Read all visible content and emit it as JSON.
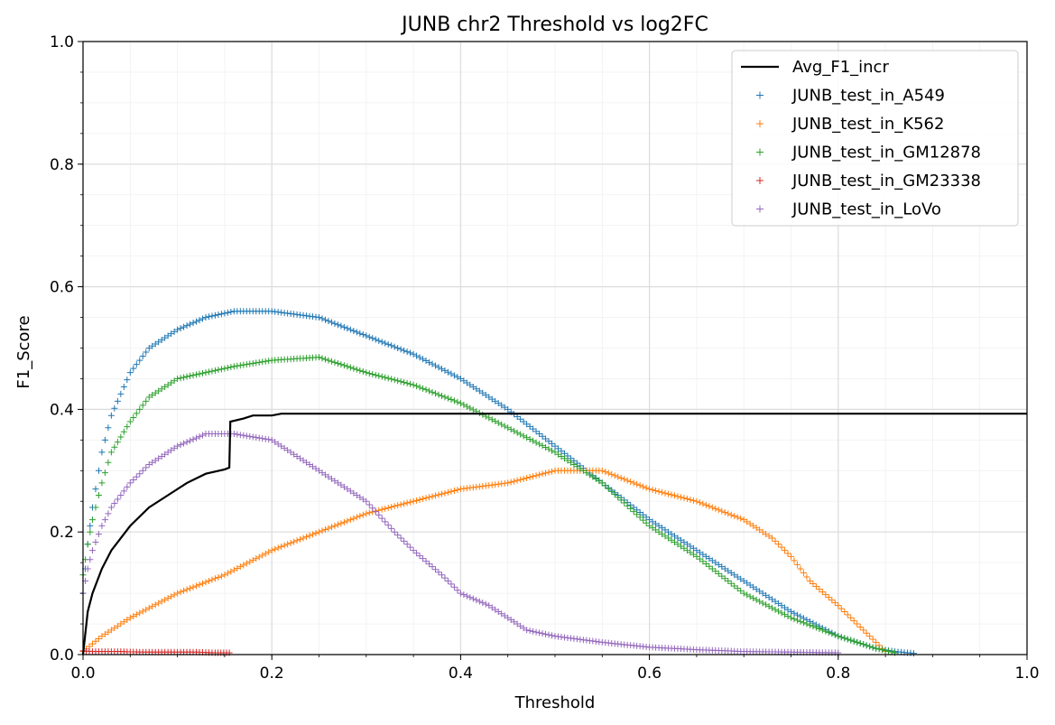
{
  "chart_data": {
    "type": "scatter",
    "title": "JUNB chr2 Threshold vs log2FC",
    "xlabel": "Threshold",
    "ylabel": "F1_Score",
    "xlim": [
      0.0,
      1.0
    ],
    "ylim": [
      0.0,
      1.0
    ],
    "xticks": [
      "0.0",
      "0.2",
      "0.4",
      "0.6",
      "0.8",
      "1.0"
    ],
    "yticks": [
      "0.0",
      "0.2",
      "0.4",
      "0.6",
      "0.8",
      "1.0"
    ],
    "grid": true,
    "minor_grid": true,
    "legend_position": "top-right",
    "line": {
      "name": "Avg_F1_incr",
      "color": "#000000",
      "x": [
        0.0,
        0.005,
        0.01,
        0.02,
        0.03,
        0.05,
        0.07,
        0.09,
        0.11,
        0.13,
        0.15,
        0.155,
        0.156,
        0.17,
        0.18,
        0.2,
        0.21,
        1.0
      ],
      "y": [
        0.0,
        0.07,
        0.1,
        0.14,
        0.17,
        0.21,
        0.24,
        0.26,
        0.28,
        0.295,
        0.302,
        0.305,
        0.38,
        0.385,
        0.39,
        0.39,
        0.393,
        0.393
      ]
    },
    "series": [
      {
        "name": "JUNB_test_in_A549",
        "color": "#1f77b4",
        "x": [
          0.0,
          0.005,
          0.01,
          0.02,
          0.03,
          0.05,
          0.07,
          0.1,
          0.13,
          0.16,
          0.2,
          0.25,
          0.3,
          0.35,
          0.4,
          0.45,
          0.5,
          0.55,
          0.6,
          0.65,
          0.7,
          0.75,
          0.8,
          0.84,
          0.86,
          0.88
        ],
        "y": [
          0.1,
          0.18,
          0.24,
          0.33,
          0.39,
          0.46,
          0.5,
          0.53,
          0.55,
          0.56,
          0.56,
          0.55,
          0.52,
          0.49,
          0.45,
          0.4,
          0.34,
          0.28,
          0.22,
          0.17,
          0.12,
          0.07,
          0.03,
          0.01,
          0.005,
          0.002
        ]
      },
      {
        "name": "JUNB_test_in_K562",
        "color": "#ff7f0e",
        "x": [
          0.0,
          0.02,
          0.05,
          0.1,
          0.15,
          0.2,
          0.25,
          0.3,
          0.35,
          0.4,
          0.45,
          0.5,
          0.55,
          0.6,
          0.65,
          0.7,
          0.73,
          0.75,
          0.77,
          0.8,
          0.82,
          0.84,
          0.85
        ],
        "y": [
          0.005,
          0.03,
          0.06,
          0.1,
          0.13,
          0.17,
          0.2,
          0.23,
          0.25,
          0.27,
          0.28,
          0.3,
          0.3,
          0.27,
          0.25,
          0.22,
          0.19,
          0.16,
          0.12,
          0.08,
          0.05,
          0.02,
          0.005
        ]
      },
      {
        "name": "JUNB_test_in_GM12878",
        "color": "#2ca02c",
        "x": [
          0.0,
          0.005,
          0.01,
          0.02,
          0.03,
          0.05,
          0.07,
          0.1,
          0.13,
          0.16,
          0.2,
          0.25,
          0.3,
          0.35,
          0.4,
          0.45,
          0.5,
          0.55,
          0.6,
          0.65,
          0.7,
          0.75,
          0.8,
          0.84,
          0.86
        ],
        "y": [
          0.13,
          0.18,
          0.22,
          0.28,
          0.33,
          0.38,
          0.42,
          0.45,
          0.46,
          0.47,
          0.48,
          0.485,
          0.46,
          0.44,
          0.41,
          0.37,
          0.33,
          0.28,
          0.21,
          0.16,
          0.1,
          0.06,
          0.03,
          0.01,
          0.003
        ]
      },
      {
        "name": "JUNB_test_in_GM23338",
        "color": "#d62728",
        "x": [
          0.0,
          0.01,
          0.02,
          0.04,
          0.06,
          0.08,
          0.1,
          0.12,
          0.14,
          0.155
        ],
        "y": [
          0.006,
          0.005,
          0.005,
          0.005,
          0.004,
          0.004,
          0.004,
          0.004,
          0.003,
          0.003
        ]
      },
      {
        "name": "JUNB_test_in_LoVo",
        "color": "#9467bd",
        "x": [
          0.0,
          0.005,
          0.01,
          0.02,
          0.03,
          0.05,
          0.07,
          0.1,
          0.13,
          0.16,
          0.18,
          0.2,
          0.22,
          0.25,
          0.28,
          0.3,
          0.33,
          0.35,
          0.38,
          0.4,
          0.43,
          0.45,
          0.47,
          0.5,
          0.55,
          0.6,
          0.65,
          0.7,
          0.75,
          0.8
        ],
        "y": [
          0.1,
          0.14,
          0.17,
          0.21,
          0.24,
          0.28,
          0.31,
          0.34,
          0.36,
          0.36,
          0.355,
          0.35,
          0.33,
          0.3,
          0.27,
          0.25,
          0.2,
          0.17,
          0.13,
          0.1,
          0.08,
          0.06,
          0.04,
          0.03,
          0.02,
          0.012,
          0.008,
          0.005,
          0.004,
          0.003
        ]
      }
    ]
  }
}
